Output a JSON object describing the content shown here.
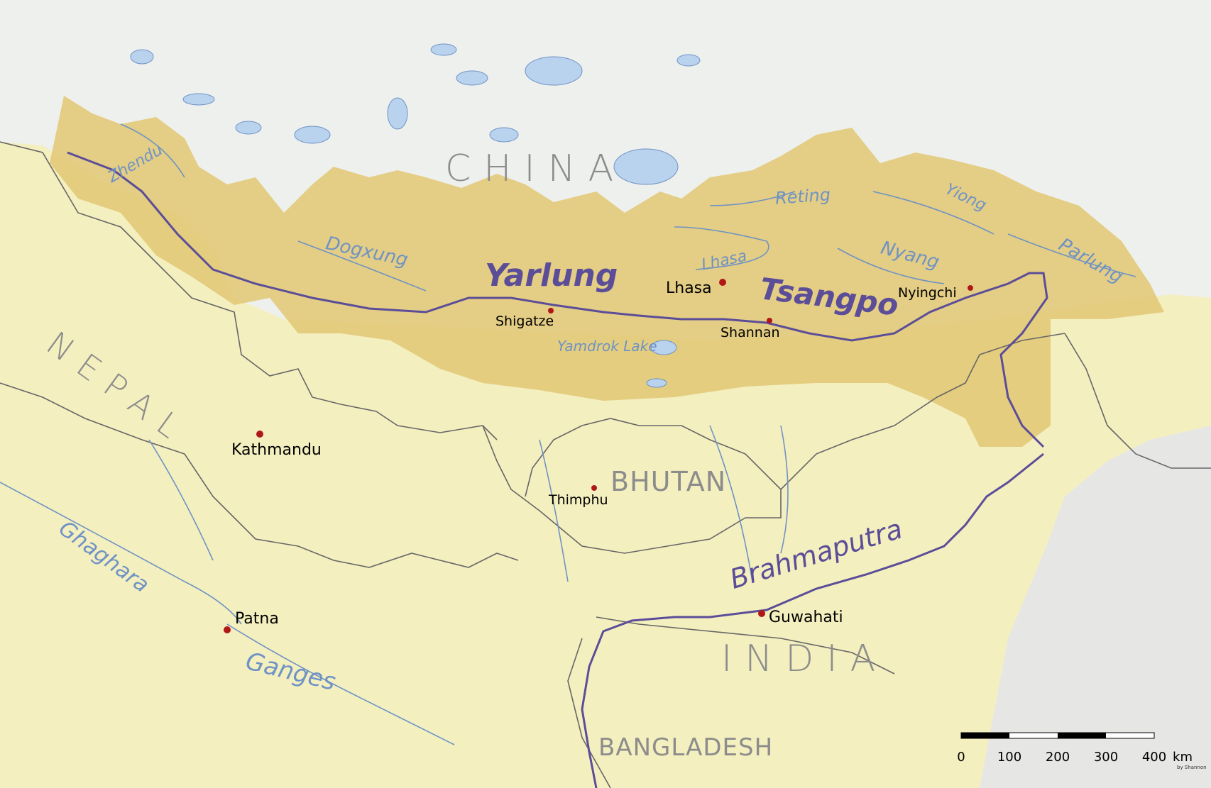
{
  "countries": {
    "china": "CHINA",
    "nepal": "NEPAL",
    "bhutan": "BHUTAN",
    "india": "INDIA",
    "bangladesh": "BANGLADESH"
  },
  "cities": {
    "lhasa": "Lhasa",
    "shigatze": "Shigatze",
    "shannan": "Shannan",
    "nyingchi": "Nyingchi",
    "kathmandu": "Kathmandu",
    "thimphu": "Thimphu",
    "patna": "Patna",
    "guwahati": "Guwahati"
  },
  "rivers": {
    "yarlung": "Yarlung",
    "tsangpo": "Tsangpo",
    "brahmaputra": "Brahmaputra",
    "zhendu": "Zhendu",
    "dogxung": "Dogxung",
    "lhasa": "Lhasa",
    "reting": "Reting",
    "yiong": "Yiong",
    "nyang": "Nyang",
    "parlung": "Parlung",
    "yamdrok_lake": "Yamdrok Lake",
    "ghaghara": "Ghaghara",
    "ganges": "Ganges"
  },
  "scale_bar": {
    "ticks": [
      "0",
      "100",
      "200",
      "300",
      "400"
    ],
    "unit": "km",
    "credit": "by Shannon"
  },
  "colors": {
    "basin": "#e2c978",
    "lowland": "#f4efbf",
    "highland": "#eef0ee",
    "main_river": "#5b4d98",
    "river": "#6f93c4",
    "city_dot": "#b01818"
  }
}
